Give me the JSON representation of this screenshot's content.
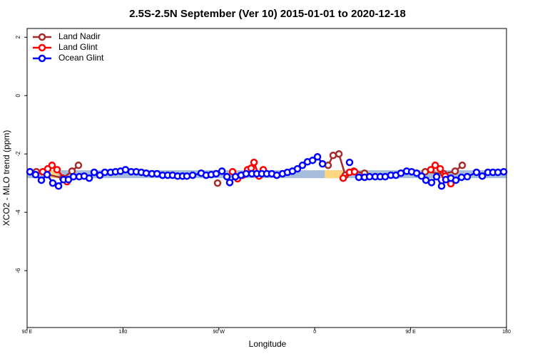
{
  "chart_data": {
    "type": "line",
    "title": "2.5S-2.5N September (Ver 10)   2015-01-01 to 2020-12-18",
    "x_label": "Longitude",
    "y_label": "XCO2 - MLO trend (ppm)",
    "xlim": [
      -270,
      180
    ],
    "ylim": [
      -7.95,
      2.3
    ],
    "xticks": [
      {
        "value": -270,
        "label": "90 E"
      },
      {
        "value": -180,
        "label": "180"
      },
      {
        "value": -90,
        "label": "90 W"
      },
      0,
      {
        "value": 90,
        "label": "90 E"
      },
      180
    ],
    "yticks": [
      2,
      0,
      -2,
      -4,
      -6
    ],
    "legend": "top-left",
    "band": {
      "low": -2.83,
      "high": -2.56,
      "color": "#a6bddb"
    },
    "highlights": [
      {
        "x0": -249,
        "x1": -241,
        "color": "#fdd780"
      },
      {
        "x0": 9.4,
        "x1": 27,
        "color": "#fdd780"
      },
      {
        "x0": 114,
        "x1": 123,
        "color": "#fdd780"
      }
    ],
    "series": [
      {
        "name": "Land Nadir",
        "color": "#a52a2a",
        "x": [
          -267.3,
          -261.3,
          -236.5,
          -227.8,
          -221.8,
          null,
          -91.2,
          null,
          12.6,
          17.3,
          22.7,
          28.7,
          36.7,
          46.8,
          null,
          103.7,
          121.1,
          131.8,
          138.5
        ],
        "values": [
          -2.61,
          -2.61,
          -2.83,
          -2.59,
          -2.39,
          null,
          -3.0,
          null,
          -2.39,
          -2.05,
          -2.0,
          -2.73,
          -2.59,
          -2.66,
          null,
          -2.61,
          -2.68,
          -2.59,
          -2.39
        ]
      },
      {
        "name": "Land Glint",
        "color": "#ff0000",
        "x": [
          -255.3,
          -250.6,
          -246.6,
          -241.9,
          -232.5,
          null,
          -77.1,
          -72.4,
          -67.7,
          -63,
          -59.7,
          -57,
          -52.3,
          -48.3,
          null,
          26.7,
          32.7,
          37.4,
          null,
          109,
          113.1,
          117.8,
          122.5,
          127.8
        ],
        "values": [
          -2.61,
          -2.51,
          -2.39,
          -2.54,
          -2.95,
          null,
          -2.61,
          -2.85,
          -2.73,
          -2.54,
          -2.49,
          -2.29,
          -2.76,
          -2.54,
          null,
          -2.83,
          -2.63,
          -2.61,
          null,
          -2.54,
          -2.39,
          -2.51,
          -2.76,
          -3.02
        ]
      },
      {
        "name": "Ocean Glint",
        "color": "#0000ff",
        "x": [
          -267.3,
          -262,
          -256.6,
          -251.2,
          -245.9,
          -240.5,
          -235.8,
          -231.2,
          -226.5,
          -221.1,
          -216.4,
          -211.7,
          -207,
          -201.7,
          -197,
          -191.6,
          -187,
          -182.3,
          -177.6,
          -172.3,
          -167.5,
          -162.8,
          -158.2,
          -152.8,
          -148,
          -142.8,
          -138,
          -133.4,
          -128.7,
          -124,
          -120,
          -114.6,
          -106.6,
          -101.9,
          -97.2,
          -92.5,
          -87.1,
          -82.4,
          -79.8,
          -74.4,
          -69.1,
          -64.4,
          -59,
          -54.4,
          -49.7,
          -45,
          -40.3,
          -35.6,
          -30.2,
          -25.6,
          -20.9,
          -16.2,
          -11.5,
          -6.8,
          -2,
          2.6,
          7.3,
          null,
          32.7,
          null,
          41.4,
          46.8,
          51.5,
          56.8,
          61.5,
          66.2,
          71.5,
          76.2,
          80.9,
          86.3,
          91,
          95.7,
          100.3,
          104.4,
          109.7,
          114.4,
          119.1,
          123.1,
          127.8,
          132.5,
          137.8,
          143.2,
          151.9,
          157.3,
          162.6,
          167.3,
          172,
          177.4
        ],
        "values": [
          -2.61,
          -2.71,
          -2.9,
          -2.71,
          -3.0,
          -3.1,
          -2.88,
          -2.88,
          -2.78,
          -2.78,
          -2.76,
          -2.83,
          -2.63,
          -2.73,
          -2.63,
          -2.63,
          -2.61,
          -2.59,
          -2.54,
          -2.61,
          -2.61,
          -2.63,
          -2.66,
          -2.68,
          -2.68,
          -2.73,
          -2.73,
          -2.73,
          -2.76,
          -2.76,
          -2.76,
          -2.73,
          -2.66,
          -2.73,
          -2.71,
          -2.68,
          -2.59,
          -2.78,
          -2.98,
          -2.78,
          -2.73,
          -2.68,
          -2.68,
          -2.68,
          -2.68,
          -2.68,
          -2.68,
          -2.73,
          -2.68,
          -2.63,
          -2.59,
          -2.51,
          -2.39,
          -2.27,
          -2.22,
          -2.1,
          -2.34,
          null,
          -2.29,
          null,
          -2.8,
          -2.8,
          -2.78,
          -2.78,
          -2.78,
          -2.78,
          -2.73,
          -2.73,
          -2.66,
          -2.59,
          -2.61,
          -2.66,
          -2.76,
          -2.9,
          -2.98,
          -2.78,
          -3.1,
          -2.88,
          -2.83,
          -2.9,
          -2.8,
          -2.78,
          -2.63,
          -2.76,
          -2.63,
          -2.63,
          -2.63,
          -2.61
        ]
      }
    ]
  }
}
